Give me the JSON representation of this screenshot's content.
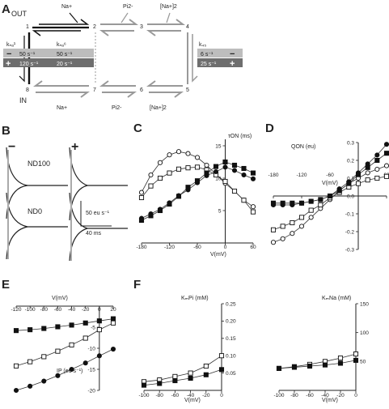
{
  "panelA": {
    "label": "A",
    "out": "OUT",
    "in": "IN",
    "states": [
      "1",
      "2",
      "3",
      "4",
      "5",
      "6",
      "7",
      "8"
    ],
    "top_ions": [
      "Na+",
      "Pi2-",
      "[Na+]2"
    ],
    "bottom_ions": [
      "Na+",
      "Pi2-",
      "[Na+]2"
    ],
    "k_left_1": "kₙₐ¹",
    "k_left_2": "kₙₐ⁶",
    "k_right": "k₄₅",
    "rates": {
      "minus_sign": "−",
      "plus_sign": "+",
      "minus_a": "50 s⁻¹",
      "minus_b": "50 s⁻¹",
      "plus_a": "120 s⁻¹",
      "plus_b": "20 s⁻¹",
      "right_minus": "6 s⁻¹",
      "right_plus": "25 s⁻¹"
    },
    "colors": {
      "light_bar": "#bdbdbd",
      "dark_bar": "#6e6e6e"
    }
  },
  "panelB": {
    "label": "B",
    "minus": "−",
    "plus": "+",
    "row1": "ND100",
    "row2": "ND0",
    "scale_y": "50 eu s⁻¹",
    "scale_x": "40 ms"
  },
  "panelC": {
    "label": "C",
    "ylabel_right": "τON (ms)",
    "xlabel": "V(mV)",
    "xticks": [
      "-180",
      "-120",
      "-60",
      "0",
      "60"
    ],
    "yticks": [
      "5",
      "10",
      "15"
    ]
  },
  "panelD": {
    "label": "D",
    "ylabel": "QON (eu)",
    "xlabel": "V(mV)",
    "xticks": [
      "-180",
      "-120",
      "-60",
      "60"
    ],
    "yticks": [
      "0.3",
      "0.2",
      "0.1",
      "0.0",
      "-0.1",
      "-0.2",
      "-0.3"
    ]
  },
  "panelE": {
    "label": "E",
    "xlabel": "V(mV)",
    "ylabel": "IP (eu s⁻¹)",
    "xticks": [
      "-120",
      "-100",
      "-80",
      "-60",
      "-40",
      "-20",
      "0",
      "20"
    ],
    "yticks": [
      "-5",
      "-10",
      "-15",
      "-20"
    ]
  },
  "panelF": {
    "label": "F",
    "left": {
      "ylabel": "KₘPi (mM)",
      "xlabel": "V(mV)",
      "xticks": [
        "-100",
        "-80",
        "-60",
        "-40",
        "-20",
        "0"
      ],
      "yticks": [
        "0.25",
        "0.20",
        "0.15",
        "0.10",
        "0.05"
      ]
    },
    "right": {
      "ylabel": "KₘNa (mM)",
      "xlabel": "V(mV)",
      "xticks": [
        "-100",
        "-80",
        "-60",
        "-40",
        "-20",
        "0"
      ],
      "yticks": [
        "150",
        "100",
        "50"
      ]
    }
  },
  "chart_data": [
    {
      "type": "line",
      "panel": "C",
      "x": [
        -180,
        -160,
        -140,
        -120,
        -100,
        -80,
        -60,
        -40,
        -20,
        0,
        20,
        40,
        60
      ],
      "series": [
        {
          "marker": "open-circle",
          "values": [
            7.8,
            10.5,
            12.4,
            13.6,
            14.1,
            13.8,
            13.2,
            12.0,
            10.6,
            9.2,
            8.0,
            6.6,
            5.6
          ]
        },
        {
          "marker": "open-square",
          "values": [
            7.0,
            8.8,
            10.0,
            10.8,
            11.4,
            11.6,
            11.7,
            11.3,
            10.5,
            9.5,
            8.0,
            6.6,
            4.8
          ]
        },
        {
          "marker": "filled-circle",
          "values": [
            3.8,
            4.5,
            5.2,
            6.2,
            7.3,
            8.2,
            9.3,
            10.4,
            11.0,
            11.7,
            11.2,
            10.5,
            9.9
          ]
        },
        {
          "marker": "filled-square",
          "values": [
            3.5,
            4.2,
            5.0,
            6.0,
            7.2,
            8.6,
            9.6,
            10.8,
            11.8,
            12.5,
            12.0,
            11.5,
            10.8
          ]
        }
      ],
      "xlim": [
        -180,
        60
      ],
      "ylim": [
        0,
        16
      ]
    },
    {
      "type": "line",
      "panel": "D",
      "x": [
        -180,
        -160,
        -140,
        -120,
        -100,
        -80,
        -60,
        -40,
        -20,
        0,
        20,
        40,
        60
      ],
      "series": [
        {
          "marker": "open-circle",
          "values": [
            -0.26,
            -0.24,
            -0.21,
            -0.17,
            -0.12,
            -0.07,
            -0.02,
            0.03,
            0.07,
            0.1,
            0.13,
            0.15,
            0.17
          ]
        },
        {
          "marker": "open-square",
          "values": [
            -0.19,
            -0.17,
            -0.15,
            -0.12,
            -0.08,
            -0.05,
            -0.01,
            0.02,
            0.05,
            0.07,
            0.09,
            0.1,
            0.11
          ]
        },
        {
          "marker": "filled-circle",
          "values": [
            -0.05,
            -0.05,
            -0.05,
            -0.04,
            -0.03,
            -0.02,
            0.0,
            0.04,
            0.08,
            0.13,
            0.18,
            0.23,
            0.29
          ]
        },
        {
          "marker": "filled-square",
          "values": [
            -0.04,
            -0.04,
            -0.04,
            -0.04,
            -0.03,
            -0.02,
            0.0,
            0.03,
            0.07,
            0.12,
            0.16,
            0.2,
            0.24
          ]
        }
      ],
      "xlim": [
        -180,
        60
      ],
      "ylim": [
        -0.3,
        0.3
      ]
    },
    {
      "type": "line",
      "panel": "E",
      "x": [
        -120,
        -100,
        -80,
        -60,
        -40,
        -20,
        0,
        20
      ],
      "series": [
        {
          "marker": "filled-square",
          "values": [
            -5.8,
            -5.6,
            -5.3,
            -4.9,
            -4.5,
            -4.0,
            -3.5,
            -3.0
          ]
        },
        {
          "marker": "open-square",
          "values": [
            -14.2,
            -13.2,
            -12.0,
            -10.7,
            -9.2,
            -7.6,
            -5.6,
            -4.0
          ]
        },
        {
          "marker": "filled-circle",
          "values": [
            -20.0,
            -19.0,
            -17.8,
            -16.5,
            -15.0,
            -13.5,
            -11.8,
            -10.2
          ]
        }
      ],
      "xlim": [
        -120,
        20
      ],
      "ylim": [
        -20,
        0
      ]
    },
    {
      "type": "line",
      "panel": "F-left",
      "x": [
        -100,
        -80,
        -60,
        -40,
        -20,
        0
      ],
      "series": [
        {
          "marker": "open-square",
          "values": [
            0.025,
            0.03,
            0.04,
            0.05,
            0.07,
            0.1
          ]
        },
        {
          "marker": "filled-square",
          "values": [
            0.015,
            0.02,
            0.028,
            0.035,
            0.045,
            0.06
          ]
        }
      ],
      "xlim": [
        -100,
        0
      ],
      "ylim": [
        0,
        0.25
      ]
    },
    {
      "type": "line",
      "panel": "F-right",
      "x": [
        -100,
        -80,
        -60,
        -40,
        -20,
        0
      ],
      "series": [
        {
          "marker": "open-square",
          "values": [
            38,
            41,
            45,
            50,
            56,
            63
          ]
        },
        {
          "marker": "filled-square",
          "values": [
            38,
            40,
            42,
            44,
            47,
            52
          ]
        }
      ],
      "xlim": [
        -100,
        0
      ],
      "ylim": [
        0,
        150
      ]
    }
  ]
}
